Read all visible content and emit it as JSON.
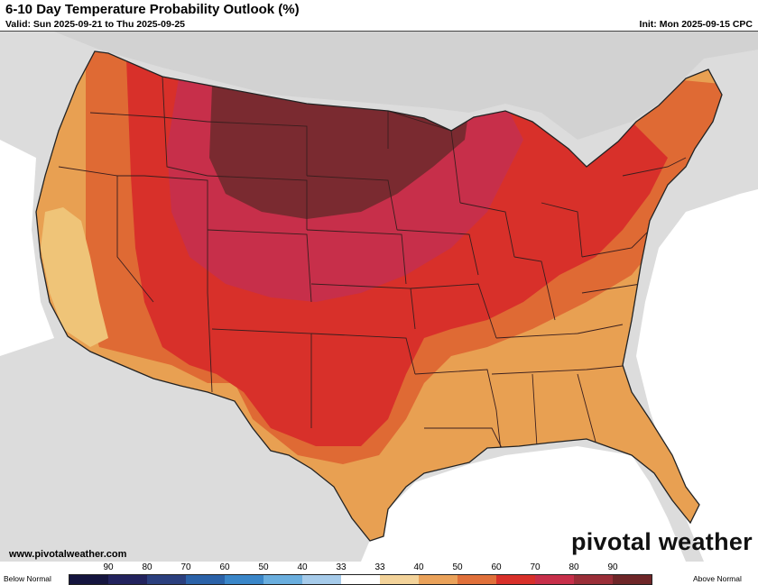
{
  "header": {
    "title": "6-10 Day Temperature Probability Outlook (%)",
    "valid": "Valid: Sun 2025-09-21 to Thu 2025-09-25",
    "init": "Init: Mon 2025-09-15 CPC"
  },
  "footer": {
    "website": "www.pivotalweather.com",
    "brand": "pivotal weather"
  },
  "map": {
    "region": "Contiguous United States",
    "variable": "temperature probability",
    "zones": [
      {
        "name": "northern-plains-max",
        "category": "Above Normal",
        "probability": "80-90",
        "color": "#7a2a30"
      },
      {
        "name": "central-rockies-plains",
        "category": "Above Normal",
        "probability": "70-80",
        "color": "#c72f4a"
      },
      {
        "name": "interior-band",
        "category": "Above Normal",
        "probability": "60-70",
        "color": "#d8302a"
      },
      {
        "name": "southern-east-band",
        "category": "Above Normal",
        "probability": "50-60",
        "color": "#df6a34"
      },
      {
        "name": "southeast-west-coast",
        "category": "Above Normal",
        "probability": "40-50",
        "color": "#e8a052"
      },
      {
        "name": "central-california",
        "category": "Above Normal",
        "probability": "33-40",
        "color": "#efc478"
      }
    ]
  },
  "legend": {
    "below_label": "Below Normal",
    "above_label": "Above Normal",
    "ticks": [
      "90",
      "80",
      "70",
      "60",
      "50",
      "40",
      "33",
      "33",
      "40",
      "50",
      "60",
      "70",
      "80",
      "90"
    ],
    "colors": [
      "#15153f",
      "#23235e",
      "#2b3f7e",
      "#2b62a8",
      "#3a86c8",
      "#6aaede",
      "#a6cbea",
      "#ffffff",
      "#f3d39a",
      "#eaa25a",
      "#e0703a",
      "#d8302a",
      "#c72f4a",
      "#9a2e38",
      "#6e2628"
    ]
  }
}
